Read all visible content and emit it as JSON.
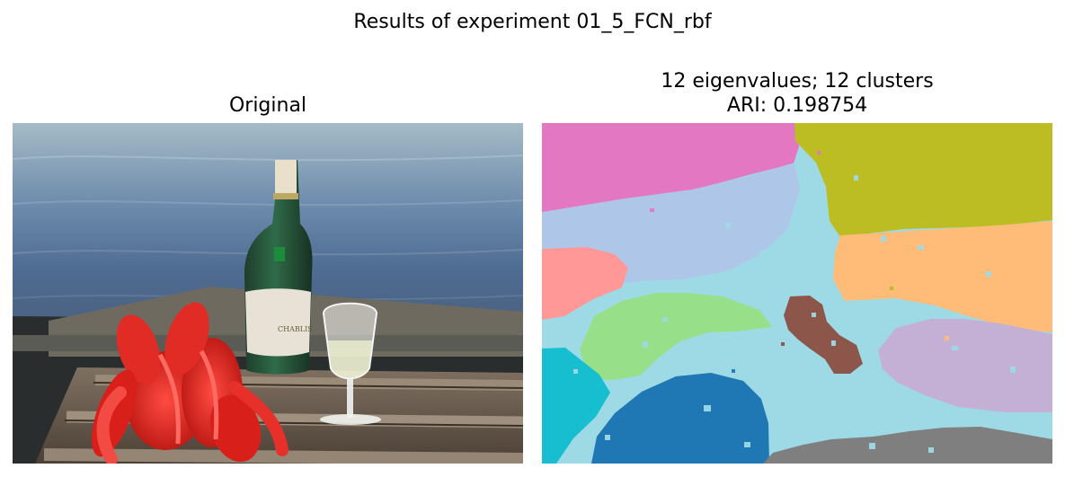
{
  "figure": {
    "suptitle": "Results of experiment 01_5_FCN_rbf"
  },
  "left_panel": {
    "title": "Original",
    "image": "natural photograph of a wine bottle, glass, and lobsters on a wooden dock beside water"
  },
  "right_panel": {
    "title_line1": "12 eigenvalues; 12 clusters",
    "title_line2": "ARI: 0.198754",
    "cluster_colors": [
      "#9edae5",
      "#e377c2",
      "#bcbd22",
      "#aec7e8",
      "#ffbb78",
      "#ff9896",
      "#98df8a",
      "#8c564b",
      "#c5b0d5",
      "#17becf",
      "#1f77b4",
      "#7f7f7f"
    ]
  }
}
